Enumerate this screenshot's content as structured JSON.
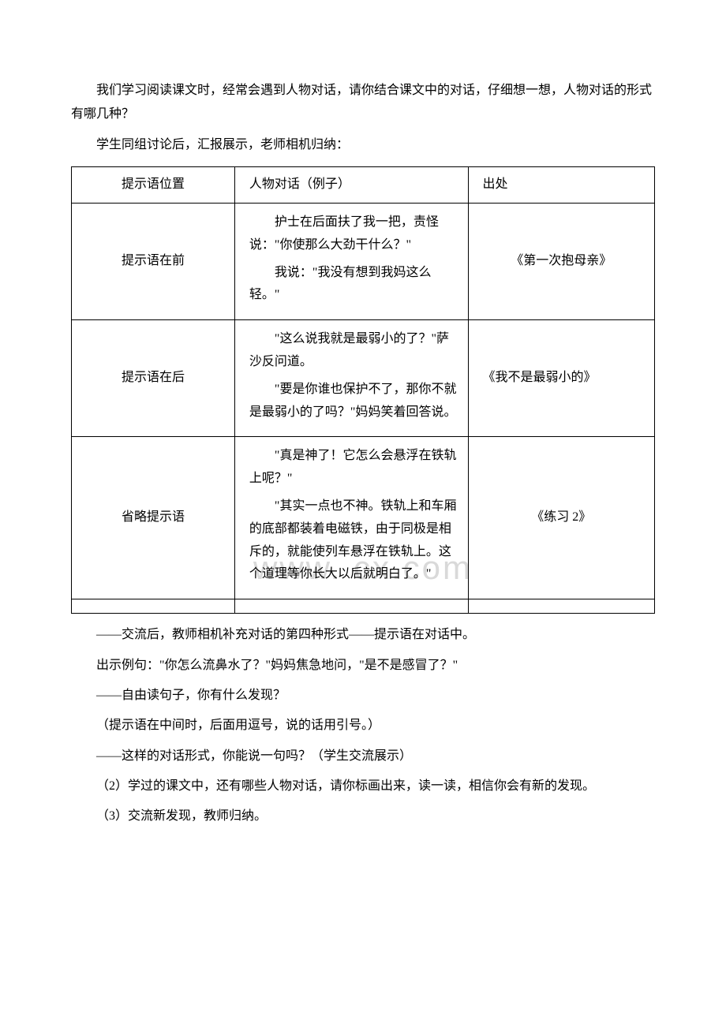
{
  "intro": {
    "p1": "我们学习阅读课文时，经常会遇到人物对话，请你结合课文中的对话，仔细想一想，人物对话的形式有哪几种？",
    "p2": "学生同组讨论后，汇报展示，老师相机归纳："
  },
  "table": {
    "headers": {
      "col1": "提示语位置",
      "col2": "人物对话（例子）",
      "col3": "出处"
    },
    "rows": [
      {
        "position": "提示语在前",
        "example_p1": "护士在后面扶了我一把，责怪说：\"你使那么大劲干什么？\"",
        "example_p2": "我说：\"我没有想到我妈这么轻。\"",
        "source": "《第一次抱母亲》"
      },
      {
        "position": "提示语在后",
        "example_p1": "\"这么说我就是最弱小的了？\"萨沙反问道。",
        "example_p2": "\"要是你谁也保护不了，那你不就是最弱小的了吗？\"妈妈笑着回答说。",
        "source": "《我不是最弱小的》"
      },
      {
        "position": "省略提示语",
        "example_p1": "\"真是神了！它怎么会悬浮在铁轨上呢？\"",
        "example_p2": "\"其实一点也不神。铁轨上和车厢的底部都装着电磁铁，由于同极是相斥的，就能使列车悬浮在铁轨上。这个道理等你长大以后就明白了。\"",
        "source": "《练习 2》"
      }
    ]
  },
  "after": {
    "p1": "——交流后，教师相机补充对话的第四种形式——提示语在对话中。",
    "p2": "出示例句：\"你怎么流鼻水了？\"妈妈焦急地问，\"是不是感冒了？\"",
    "p3": "——自由读句子，你有什么发现？",
    "p4": "（提示语在中间时，后面用逗号，说的话用引号。）",
    "p5": "——这样的对话形式，你能说一句吗？（学生交流展示）",
    "p6": "（2）学过的课文中，还有哪些人物对话，请你标画出来，读一读，相信你会有新的发现。",
    "p7": "（3）交流新发现，教师归纳。"
  },
  "watermark": "www.       cx.com"
}
